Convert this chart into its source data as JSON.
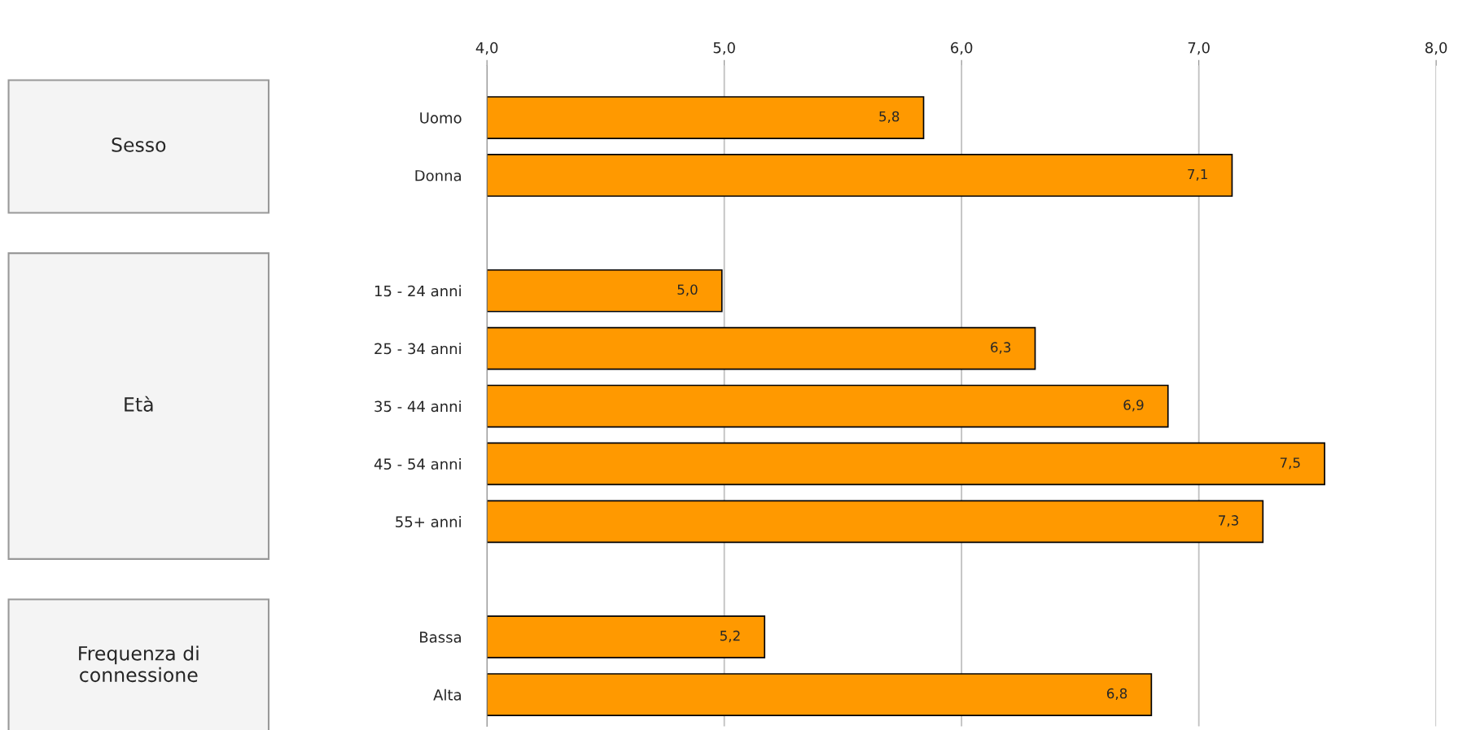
{
  "chart_data": {
    "type": "bar",
    "orientation": "horizontal",
    "categories": [
      "Uomo",
      "Donna",
      null,
      "15 - 24 anni",
      "25 - 34 anni",
      "35 - 44 anni",
      "45 - 54 anni",
      "55+ anni",
      null,
      "Bassa",
      "Alta"
    ],
    "values": [
      5.84,
      7.14,
      null,
      4.99,
      6.31,
      6.87,
      7.53,
      7.27,
      null,
      5.17,
      6.8
    ],
    "value_labels": [
      "5,8",
      "7,1",
      null,
      "5,0",
      "6,3",
      "6,9",
      "7,5",
      "7,3",
      null,
      "5,2",
      "6,8"
    ],
    "color": "#ff9900",
    "xlim": [
      4.0,
      8.0
    ],
    "xticks": [
      {
        "value": 4.0,
        "label": "4,0"
      },
      {
        "value": 5.0,
        "label": "5,0"
      },
      {
        "value": 6.0,
        "label": "6,0"
      },
      {
        "value": 7.0,
        "label": "7,0"
      },
      {
        "value": 8.0,
        "label": "8,0"
      }
    ],
    "grid": "x",
    "annotations": [
      "Sesso",
      "Età",
      "Frequenza di\nconnessione"
    ]
  }
}
